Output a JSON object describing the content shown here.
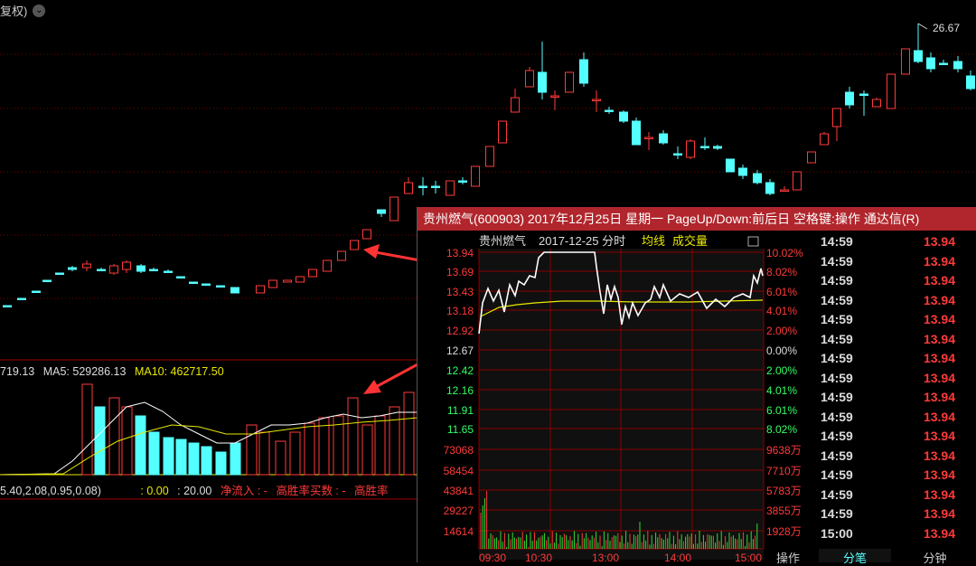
{
  "main": {
    "fq_label": "复权)",
    "price_high_label": "26.67",
    "ma_row": {
      "vol_prefix": "719.13",
      "ma5": "MA5: 529286.13",
      "ma10": "MA10: 462717.50"
    },
    "bottom_row": {
      "params": "5.40,2.08,0.95,0.08)",
      "v1": ": 0.00",
      "v2": ": 20.00",
      "net_inflow": "净流入 : -",
      "high_rate": "高胜率买数 : -",
      "high_rate2": "高胜率"
    }
  },
  "popup": {
    "title": "贵州燃气(600903) 2017年12月25日 星期一 PageUp/Down:前后日 空格键:操作 通达信(R)",
    "header_name": "贵州燃气",
    "header_date": "2017-12-25 分时",
    "legend_avg": "均线",
    "legend_vol": "成交量",
    "price_ticks": [
      "13.94",
      "13.69",
      "13.43",
      "13.18",
      "12.92",
      "12.67",
      "12.42",
      "12.16",
      "11.91",
      "11.65"
    ],
    "pct_ticks": [
      "10.02%",
      "8.02%",
      "6.01%",
      "4.01%",
      "2.00%",
      "0.00%",
      "2.00%",
      "4.01%",
      "6.01%",
      "8.02%"
    ],
    "vol_left_ticks": [
      "73068",
      "58454",
      "43841",
      "29227",
      "14614"
    ],
    "vol_right_ticks": [
      "9638万",
      "7710万",
      "5783万",
      "3855万",
      "1928万"
    ],
    "time_ticks": [
      "09:30",
      "10:30",
      "13:00",
      "14:00",
      "15:00"
    ],
    "ticks": [
      {
        "time": "14:59",
        "price": "13.94"
      },
      {
        "time": "14:59",
        "price": "13.94"
      },
      {
        "time": "14:59",
        "price": "13.94"
      },
      {
        "time": "14:59",
        "price": "13.94"
      },
      {
        "time": "14:59",
        "price": "13.94"
      },
      {
        "time": "14:59",
        "price": "13.94"
      },
      {
        "time": "14:59",
        "price": "13.94"
      },
      {
        "time": "14:59",
        "price": "13.94"
      },
      {
        "time": "14:59",
        "price": "13.94"
      },
      {
        "time": "14:59",
        "price": "13.94"
      },
      {
        "time": "14:59",
        "price": "13.94"
      },
      {
        "time": "14:59",
        "price": "13.94"
      },
      {
        "time": "14:59",
        "price": "13.94"
      },
      {
        "time": "14:59",
        "price": "13.94"
      },
      {
        "time": "14:59",
        "price": "13.94"
      },
      {
        "time": "15:00",
        "price": "13.94"
      }
    ],
    "tabs": [
      "操作",
      "分笔",
      "分钟"
    ]
  },
  "colors": {
    "up": "#ff3a3a",
    "down": "#54ffff",
    "ma5": "#ffffff",
    "ma10": "#e8e800",
    "title_bar": "#b0262c"
  }
}
